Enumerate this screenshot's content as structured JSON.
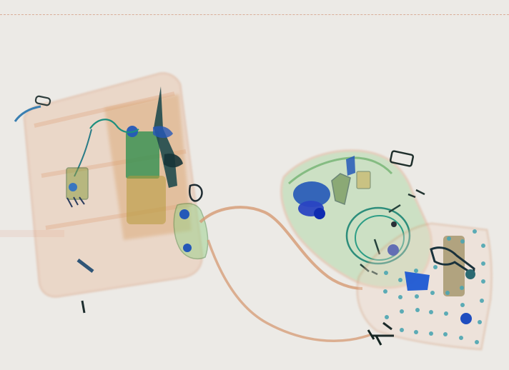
{
  "scene": {
    "image_type": "x-ray baggage scan",
    "palette": {
      "background": "#eceae6",
      "organic_orange": "#d6926a",
      "organic_light": "#e9b491",
      "mixed_green": "#7fc07a",
      "dense_green": "#2e8f4f",
      "metal_blue": "#2458b8",
      "deep_blue": "#1732a8",
      "dark_metal": "#163437",
      "olive": "#9a8b3a"
    },
    "objects": [
      "left-bag",
      "center-strap",
      "right-bag",
      "perforated-item",
      "scissors",
      "earphone-cable",
      "metal-keys"
    ]
  }
}
